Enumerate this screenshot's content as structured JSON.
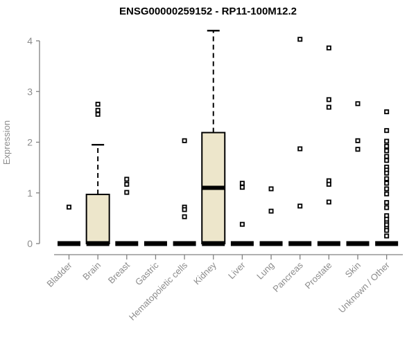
{
  "chart_data": {
    "type": "boxplot",
    "title": "ENSG00000259152 - RP11-100M12.2",
    "ylabel": "Expression",
    "xlabel": "",
    "ylim": [
      0,
      4
    ],
    "yticks": [
      0,
      1,
      2,
      3,
      4
    ],
    "grid": false,
    "legend": null,
    "categories": [
      "Bladder",
      "Brain",
      "Breast",
      "Gastric",
      "Hematopoietic cells",
      "Kidney",
      "Liver",
      "Lung",
      "Pancreas",
      "Prostate",
      "Skin",
      "Unknown / Other"
    ],
    "series": [
      {
        "name": "Bladder",
        "q1": 0,
        "median": 0,
        "q3": 0,
        "whisker_low": 0,
        "whisker_high": 0,
        "outliers": [
          0.72
        ]
      },
      {
        "name": "Brain",
        "q1": 0,
        "median": 0,
        "q3": 0.97,
        "whisker_low": 0,
        "whisker_high": 1.95,
        "outliers": [
          2.75,
          2.63,
          2.55
        ]
      },
      {
        "name": "Breast",
        "q1": 0,
        "median": 0,
        "q3": 0,
        "whisker_low": 0,
        "whisker_high": 0,
        "outliers": [
          1.27,
          1.17,
          1.01
        ]
      },
      {
        "name": "Gastric",
        "q1": 0,
        "median": 0,
        "q3": 0,
        "whisker_low": 0,
        "whisker_high": 0,
        "outliers": []
      },
      {
        "name": "Hematopoietic cells",
        "q1": 0,
        "median": 0,
        "q3": 0,
        "whisker_low": 0,
        "whisker_high": 0,
        "outliers": [
          2.03,
          0.72,
          0.67,
          0.53
        ]
      },
      {
        "name": "Kidney",
        "q1": 0,
        "median": 1.1,
        "q3": 2.19,
        "whisker_low": 0,
        "whisker_high": 4.2,
        "outliers": []
      },
      {
        "name": "Liver",
        "q1": 0,
        "median": 0,
        "q3": 0,
        "whisker_low": 0,
        "whisker_high": 0,
        "outliers": [
          1.19,
          1.11,
          0.38
        ]
      },
      {
        "name": "Lung",
        "q1": 0,
        "median": 0,
        "q3": 0,
        "whisker_low": 0,
        "whisker_high": 0,
        "outliers": [
          1.08,
          0.64
        ]
      },
      {
        "name": "Pancreas",
        "q1": 0,
        "median": 0,
        "q3": 0,
        "whisker_low": 0,
        "whisker_high": 0,
        "outliers": [
          4.03,
          1.87,
          0.74
        ]
      },
      {
        "name": "Prostate",
        "q1": 0,
        "median": 0,
        "q3": 0,
        "whisker_low": 0,
        "whisker_high": 0,
        "outliers": [
          3.86,
          2.84,
          2.69,
          1.24,
          1.17,
          0.82
        ]
      },
      {
        "name": "Skin",
        "q1": 0,
        "median": 0,
        "q3": 0,
        "whisker_low": 0,
        "whisker_high": 0,
        "outliers": [
          2.76,
          2.03,
          1.86
        ]
      },
      {
        "name": "Unknown / Other",
        "q1": 0,
        "median": 0,
        "q3": 0,
        "whisker_low": 0,
        "whisker_high": 0,
        "outliers": [
          2.6,
          2.23,
          2.02,
          1.92,
          1.83,
          1.72,
          1.64,
          1.51,
          1.45,
          1.39,
          1.28,
          1.19,
          1.08,
          0.98,
          0.81,
          0.71,
          0.55,
          0.48,
          0.41,
          0.37,
          0.3,
          0.26,
          0.15
        ]
      }
    ],
    "colors": {
      "box_fill": "#EDE6CB",
      "box_stroke": "#000000",
      "median": "#000000",
      "outlier": "#000000",
      "axis": "#808080",
      "tick_label": "#8c8c8c",
      "axis_label": "#8c8c8c",
      "title": "#000000",
      "background": "#ffffff"
    }
  }
}
